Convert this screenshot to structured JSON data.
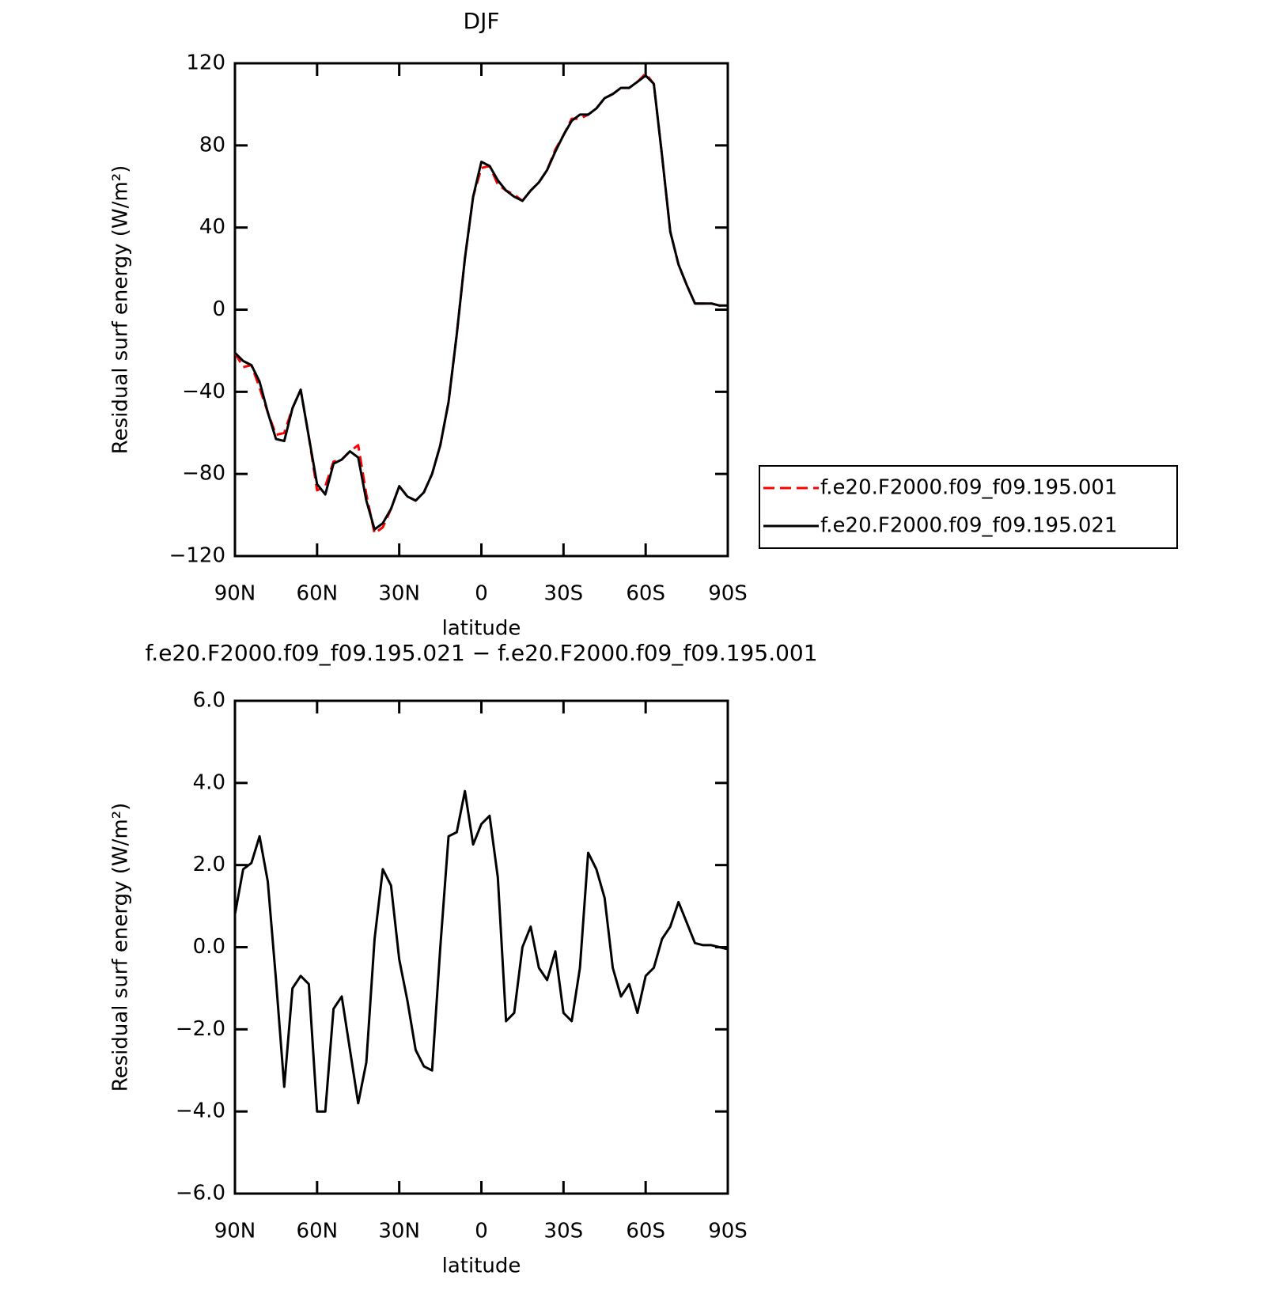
{
  "chart_data": [
    {
      "type": "line",
      "title": "DJF",
      "xlabel": "latitude",
      "ylabel": "Residual surf energy (W/m²)",
      "legend": "right",
      "x": [
        90,
        87,
        84,
        81,
        78,
        75,
        72,
        69,
        66,
        63,
        60,
        57,
        54,
        51,
        48,
        45,
        42,
        39,
        36,
        33,
        30,
        27,
        24,
        21,
        18,
        15,
        12,
        9,
        6,
        3,
        0,
        -3,
        -6,
        -9,
        -12,
        -15,
        -18,
        -21,
        -24,
        -27,
        -30,
        -33,
        -36,
        -39,
        -42,
        -45,
        -48,
        -51,
        -54,
        -57,
        -60,
        -63,
        -66,
        -69,
        -72,
        -75,
        -78,
        -81,
        -84,
        -87,
        -90
      ],
      "series": [
        {
          "name": "f.e20.F2000.f09_f09.195.001",
          "color": "#ff0000",
          "dashed": true,
          "values": [
            -21,
            -28,
            -27,
            -38,
            -50,
            -61,
            -60,
            -48,
            -39,
            -62,
            -88,
            -86,
            -74,
            -73,
            -69,
            -66,
            -90,
            -109,
            -106,
            -97,
            -86,
            -91,
            -93,
            -89,
            -80,
            -66,
            -45,
            -12,
            25,
            55,
            69,
            70,
            61,
            58,
            56,
            53,
            58,
            62,
            68,
            78,
            85,
            93,
            93,
            95,
            98,
            103,
            105,
            108,
            108,
            111,
            115,
            110,
            75,
            38,
            22,
            12,
            3,
            3,
            3,
            2,
            2
          ]
        },
        {
          "name": "f.e20.F2000.f09_f09.195.021",
          "color": "#000000",
          "dashed": false,
          "values": [
            -21,
            -25,
            -27,
            -35,
            -50,
            -63,
            -64,
            -48,
            -39,
            -62,
            -85,
            -90,
            -75,
            -73,
            -69,
            -72,
            -93,
            -107,
            -104,
            -97,
            -86,
            -91,
            -93,
            -89,
            -80,
            -66,
            -45,
            -12,
            25,
            55,
            72,
            70,
            63,
            58,
            55,
            53,
            58,
            62,
            68,
            77,
            85,
            92,
            95,
            95,
            98,
            103,
            105,
            108,
            108,
            111,
            114,
            110,
            75,
            38,
            22,
            12,
            3,
            3,
            3,
            2,
            2
          ]
        }
      ],
      "xlim": [
        90,
        -90
      ],
      "xticks": [
        {
          "value": 90,
          "label": "90N"
        },
        {
          "value": 60,
          "label": "60N"
        },
        {
          "value": 30,
          "label": "30N"
        },
        0,
        {
          "value": -30,
          "label": "30S"
        },
        {
          "value": -60,
          "label": "60S"
        },
        {
          "value": -90,
          "label": "90S"
        }
      ],
      "ylim": [
        -120,
        120
      ],
      "yticks": [
        {
          "value": -120,
          "label": "−120"
        },
        {
          "value": -80,
          "label": "−80"
        },
        {
          "value": -40,
          "label": "−40"
        },
        0,
        40,
        80,
        120
      ]
    },
    {
      "type": "line",
      "title": "f.e20.F2000.f09_f09.195.021 − f.e20.F2000.f09_f09.195.001",
      "xlabel": "latitude",
      "ylabel": "Residual surf energy (W/m²)",
      "x": [
        90,
        87,
        84,
        81,
        78,
        75,
        72,
        69,
        66,
        63,
        60,
        57,
        54,
        51,
        48,
        45,
        42,
        39,
        36,
        33,
        30,
        27,
        24,
        21,
        18,
        15,
        12,
        9,
        6,
        3,
        0,
        -3,
        -6,
        -9,
        -12,
        -15,
        -18,
        -21,
        -24,
        -27,
        -30,
        -33,
        -36,
        -39,
        -42,
        -45,
        -48,
        -51,
        -54,
        -57,
        -60,
        -63,
        -66,
        -69,
        -72,
        -75,
        -78,
        -81,
        -84,
        -87,
        -90
      ],
      "values": [
        0.8,
        1.9,
        2.05,
        2.7,
        1.6,
        -0.8,
        -3.4,
        -1.0,
        -0.7,
        -0.9,
        -4.0,
        -4.0,
        -1.5,
        -1.2,
        -2.5,
        -3.8,
        -2.8,
        0.2,
        1.9,
        1.5,
        -0.3,
        -1.3,
        -2.5,
        -2.9,
        -3.0,
        0.0,
        2.7,
        2.8,
        3.8,
        2.5,
        3.0,
        3.2,
        1.7,
        -1.8,
        -1.6,
        0.0,
        0.5,
        -0.5,
        -0.8,
        -0.1,
        -1.6,
        -1.8,
        -0.5,
        2.3,
        1.9,
        1.2,
        -0.5,
        -1.2,
        -0.9,
        -1.6,
        -0.7,
        -0.5,
        0.2,
        0.5,
        1.1,
        0.6,
        0.1,
        0.05,
        0.05,
        0.0,
        -0.05
      ],
      "color": "#000000",
      "xlim": [
        90,
        -90
      ],
      "xticks": [
        {
          "value": 90,
          "label": "90N"
        },
        {
          "value": 60,
          "label": "60N"
        },
        {
          "value": 30,
          "label": "30N"
        },
        0,
        {
          "value": -30,
          "label": "30S"
        },
        {
          "value": -60,
          "label": "60S"
        },
        {
          "value": -90,
          "label": "90S"
        }
      ],
      "ylim": [
        -6,
        6
      ],
      "yticks": [
        {
          "value": -6,
          "label": "−6.0"
        },
        {
          "value": -4,
          "label": "−4.0"
        },
        {
          "value": -2,
          "label": "−2.0"
        },
        {
          "value": 0,
          "label": "0.0"
        },
        {
          "value": 2,
          "label": "2.0"
        },
        {
          "value": 4,
          "label": "4.0"
        },
        {
          "value": 6,
          "label": "6.0"
        }
      ]
    }
  ]
}
